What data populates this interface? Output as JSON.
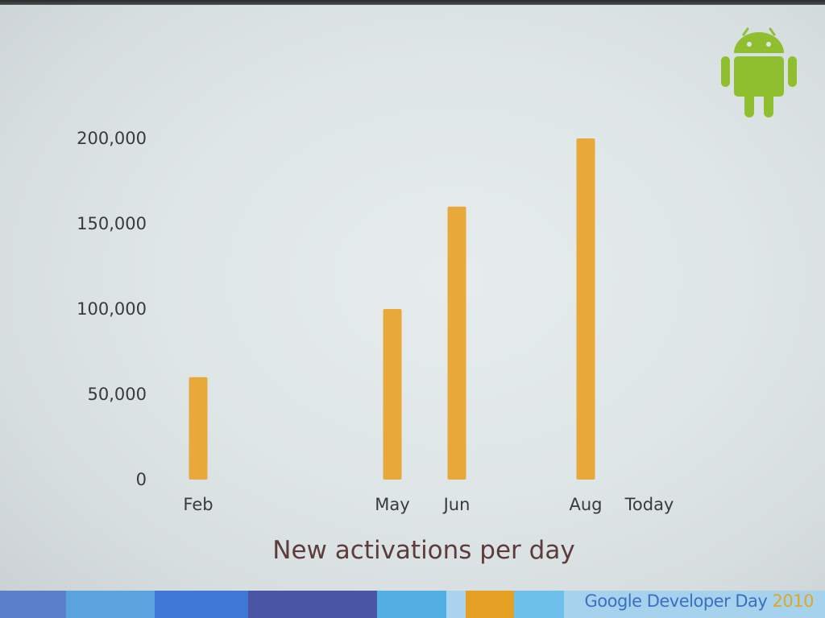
{
  "slide": {
    "footer": {
      "brand": "Google Developer Day",
      "year": "2010",
      "brand_color": "#3b6fc2",
      "year_color": "#e3a61e"
    },
    "logo_icon": "android-robot-icon",
    "logo_color": "#8fbf2e",
    "bottom_band_colors": [
      "#5c7fc9",
      "#5aa3de",
      "#3f78d6",
      "#4b55a6",
      "#52aee3",
      "#a9d3ee",
      "#e5a023",
      "#6cc0ea",
      "#a6d2ee"
    ]
  },
  "chart_data": {
    "type": "bar",
    "categories": [
      "Feb",
      "May",
      "Jun",
      "Aug",
      "Today"
    ],
    "values": [
      60000,
      100000,
      160000,
      200000,
      null
    ],
    "xlabel": "New activations per day",
    "ylabel": "",
    "yticks": [
      "0",
      "50,000",
      "100,000",
      "150,000",
      "200,000"
    ],
    "ylim": [
      0,
      200000
    ],
    "grid": false,
    "legend": "none",
    "bar_color": "#e8a93a"
  }
}
